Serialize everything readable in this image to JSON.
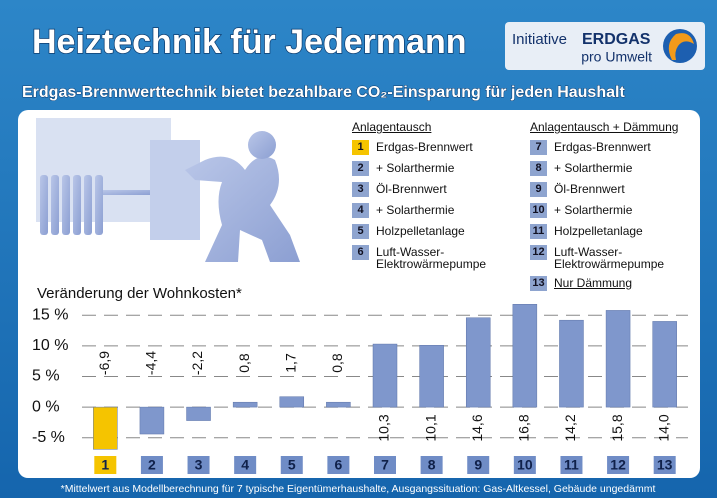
{
  "header": {
    "title": "Heiztechnik für Jedermann",
    "subtitle": "Erdgas-Brennwerttechnik bietet bezahlbare CO₂-Einsparung für jeden Haushalt"
  },
  "logo": {
    "line1": "Initiative",
    "brand": "ERDGAS",
    "line2": "pro Umwelt"
  },
  "legend": [
    {
      "title": "Anlagentausch",
      "items": [
        {
          "num": "1",
          "label": "Erdgas-Brennwert"
        },
        {
          "num": "2",
          "label": "+ Solarthermie"
        },
        {
          "num": "3",
          "label": "Öl-Brennwert"
        },
        {
          "num": "4",
          "label": "+ Solarthermie"
        },
        {
          "num": "5",
          "label": "Holzpelletanlage"
        },
        {
          "num": "6",
          "label": "Luft-Wasser-Elektrowärmepumpe"
        }
      ]
    },
    {
      "title": "Anlagentausch + Dämmung",
      "items": [
        {
          "num": "7",
          "label": "Erdgas-Brennwert"
        },
        {
          "num": "8",
          "label": "+ Solarthermie"
        },
        {
          "num": "9",
          "label": "Öl-Brennwert"
        },
        {
          "num": "10",
          "label": "+ Solarthermie"
        },
        {
          "num": "11",
          "label": "Holzpelletanlage"
        },
        {
          "num": "12",
          "label": "Luft-Wasser-Elektrowärmepumpe"
        },
        {
          "num": "13",
          "label": "Nur Dämmung"
        }
      ]
    }
  ],
  "chart_data": {
    "type": "bar",
    "y_label": "Veränderung der Wohnkosten*",
    "categories": [
      "1",
      "2",
      "3",
      "4",
      "5",
      "6",
      "7",
      "8",
      "9",
      "10",
      "11",
      "12",
      "13"
    ],
    "values": [
      -6.9,
      -4.4,
      -2.2,
      0.8,
      1.7,
      0.8,
      10.3,
      10.1,
      14.6,
      16.8,
      14.2,
      15.8,
      14.0
    ],
    "value_labels": [
      "-6,9",
      "-4,4",
      "-2,2",
      "0,8",
      "1,7",
      "0,8",
      "10,3",
      "10,1",
      "14,6",
      "16,8",
      "14,2",
      "15,8",
      "14,0"
    ],
    "colors": [
      "#f5c400",
      "#7f97cc",
      "#7f97cc",
      "#7f97cc",
      "#7f97cc",
      "#7f97cc",
      "#7f97cc",
      "#7f97cc",
      "#7f97cc",
      "#7f97cc",
      "#7f97cc",
      "#7f97cc",
      "#7f97cc"
    ],
    "ylim": [
      -7.5,
      17.5
    ],
    "yticks": [
      {
        "value": -5,
        "label": "-5 %"
      },
      {
        "value": 0,
        "label": "0 %"
      },
      {
        "value": 5,
        "label": "5 %"
      },
      {
        "value": 10,
        "label": "10 %"
      },
      {
        "value": 15,
        "label": "15 %"
      }
    ],
    "grid": true
  },
  "footnote": "*Mittelwert aus Modellberechnung für 7 typische Eigentümerhaushalte, Ausgangssituation: Gas-Altkessel, Gebäude ungedämmt"
}
